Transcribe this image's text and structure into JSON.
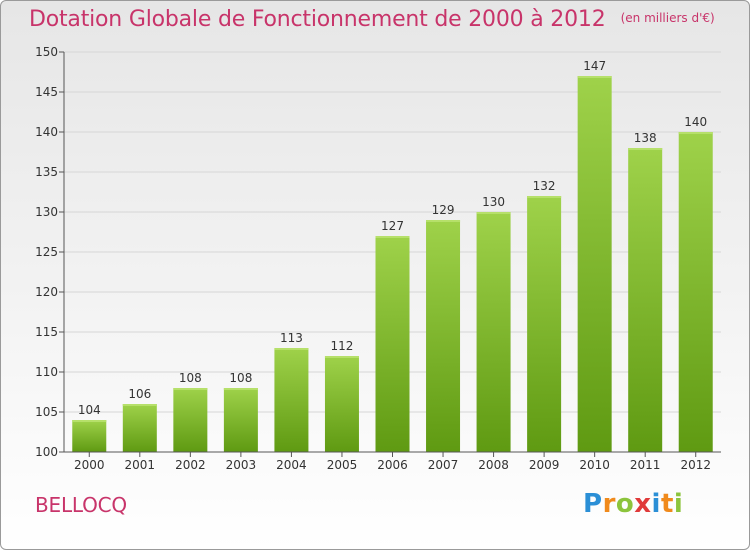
{
  "title": "Dotation Globale de Fonctionnement de 2000 à 2012",
  "subtitle": "(en milliers d'€)",
  "town": "BELLOCQ",
  "brand": {
    "text": "Proxiti",
    "letters": [
      {
        "ch": "P",
        "color": "#2b8fd6"
      },
      {
        "ch": "r",
        "color": "#f08a1c"
      },
      {
        "ch": "o",
        "color": "#8cc43c"
      },
      {
        "ch": "x",
        "color": "#e03a3a"
      },
      {
        "ch": "i",
        "color": "#2b8fd6"
      },
      {
        "ch": "t",
        "color": "#f08a1c"
      },
      {
        "ch": "i",
        "color": "#8cc43c"
      }
    ]
  },
  "colors": {
    "title": "#c8346a",
    "bar_light": "#9fd24a",
    "bar_dark": "#5f9a12",
    "axis": "#555555",
    "grid": "#d6d6d6"
  },
  "chart_data": {
    "type": "bar",
    "categories": [
      "2000",
      "2001",
      "2002",
      "2003",
      "2004",
      "2005",
      "2006",
      "2007",
      "2008",
      "2009",
      "2010",
      "2011",
      "2012"
    ],
    "values": [
      104,
      106,
      108,
      108,
      113,
      112,
      127,
      129,
      130,
      132,
      147,
      138,
      140
    ],
    "ylim": [
      100,
      150
    ],
    "yticks": [
      100,
      105,
      110,
      115,
      120,
      125,
      130,
      135,
      140,
      145,
      150
    ],
    "grid": true,
    "legend": "none"
  }
}
